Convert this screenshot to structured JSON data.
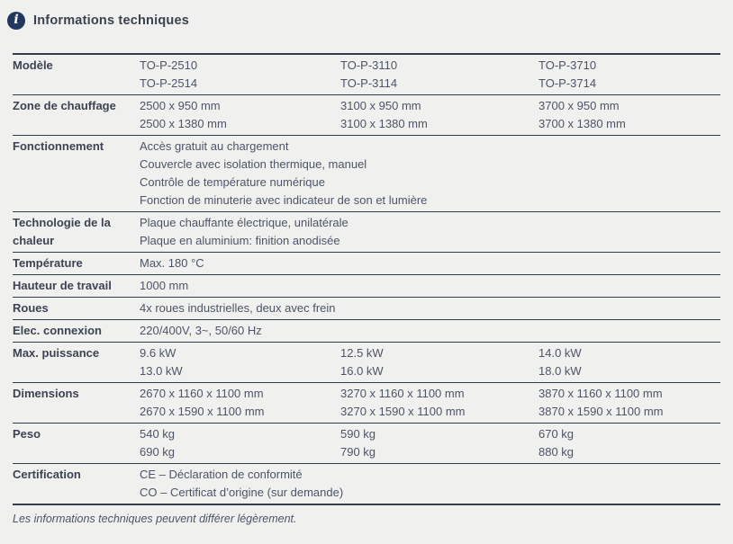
{
  "header": {
    "icon": "info-icon",
    "icon_glyph": "i",
    "title": "Informations techniques"
  },
  "colors": {
    "background": "#f0f0ef",
    "separator_line": "#343c4f",
    "accent": "#21375e",
    "label_text": "#3d4353",
    "value_text": "#4d5467"
  },
  "table": {
    "rows": [
      {
        "label": "Modèle",
        "type": "columns",
        "cols": [
          [
            "TO-P-2510",
            "TO-P-2514"
          ],
          [
            "TO-P-3110",
            "TO-P-3114"
          ],
          [
            "TO-P-3710",
            "TO-P-3714"
          ]
        ]
      },
      {
        "label": "Zone de chauffage",
        "type": "columns",
        "cols": [
          [
            "2500 x 950 mm",
            "2500 x 1380 mm"
          ],
          [
            "3100 x 950 mm",
            "3100 x 1380 mm"
          ],
          [
            "3700 x 950 mm",
            "3700 x 1380 mm"
          ]
        ]
      },
      {
        "label": "Fonctionnement",
        "type": "span",
        "lines": [
          "Accès gratuit au chargement",
          "Couvercle avec isolation thermique, manuel",
          "Contrôle de température numérique",
          "Fonction de minuterie avec indicateur de son et lumière"
        ]
      },
      {
        "label": "Technologie de la chaleur",
        "type": "span",
        "lines": [
          "Plaque chauffante électrique, unilatérale",
          "Plaque en aluminium: finition anodisée"
        ]
      },
      {
        "label": "Température",
        "type": "span",
        "lines": [
          "Max. 180 °C"
        ]
      },
      {
        "label": "Hauteur de travail",
        "type": "span",
        "lines": [
          "1000 mm"
        ]
      },
      {
        "label": "Roues",
        "type": "span",
        "lines": [
          "4x roues industrielles, deux avec frein"
        ]
      },
      {
        "label": "Elec. connexion",
        "type": "span",
        "lines": [
          "220/400V, 3~, 50/60 Hz"
        ]
      },
      {
        "label": "Max. puissance",
        "type": "columns",
        "cols": [
          [
            "9.6 kW",
            "13.0 kW"
          ],
          [
            "12.5 kW",
            "16.0 kW"
          ],
          [
            "14.0 kW",
            "18.0 kW"
          ]
        ]
      },
      {
        "label": "Dimensions",
        "type": "columns",
        "cols": [
          [
            "2670 x 1160 x 1100 mm",
            "2670 x 1590 x 1100 mm"
          ],
          [
            "3270 x 1160 x 1100 mm",
            "3270 x 1590 x 1100 mm"
          ],
          [
            "3870 x 1160 x 1100 mm",
            "3870 x 1590 x 1100 mm"
          ]
        ]
      },
      {
        "label": "Peso",
        "type": "columns",
        "cols": [
          [
            "540 kg",
            "690 kg"
          ],
          [
            "590 kg",
            "790 kg"
          ],
          [
            "670 kg",
            "880 kg"
          ]
        ]
      },
      {
        "label": "Certification",
        "type": "span",
        "lines": [
          "CE – Déclaration de conformité",
          "CO – Certificat d’origine (sur demande)"
        ]
      }
    ]
  },
  "footer": {
    "note": "Les informations techniques peuvent différer légèrement."
  }
}
